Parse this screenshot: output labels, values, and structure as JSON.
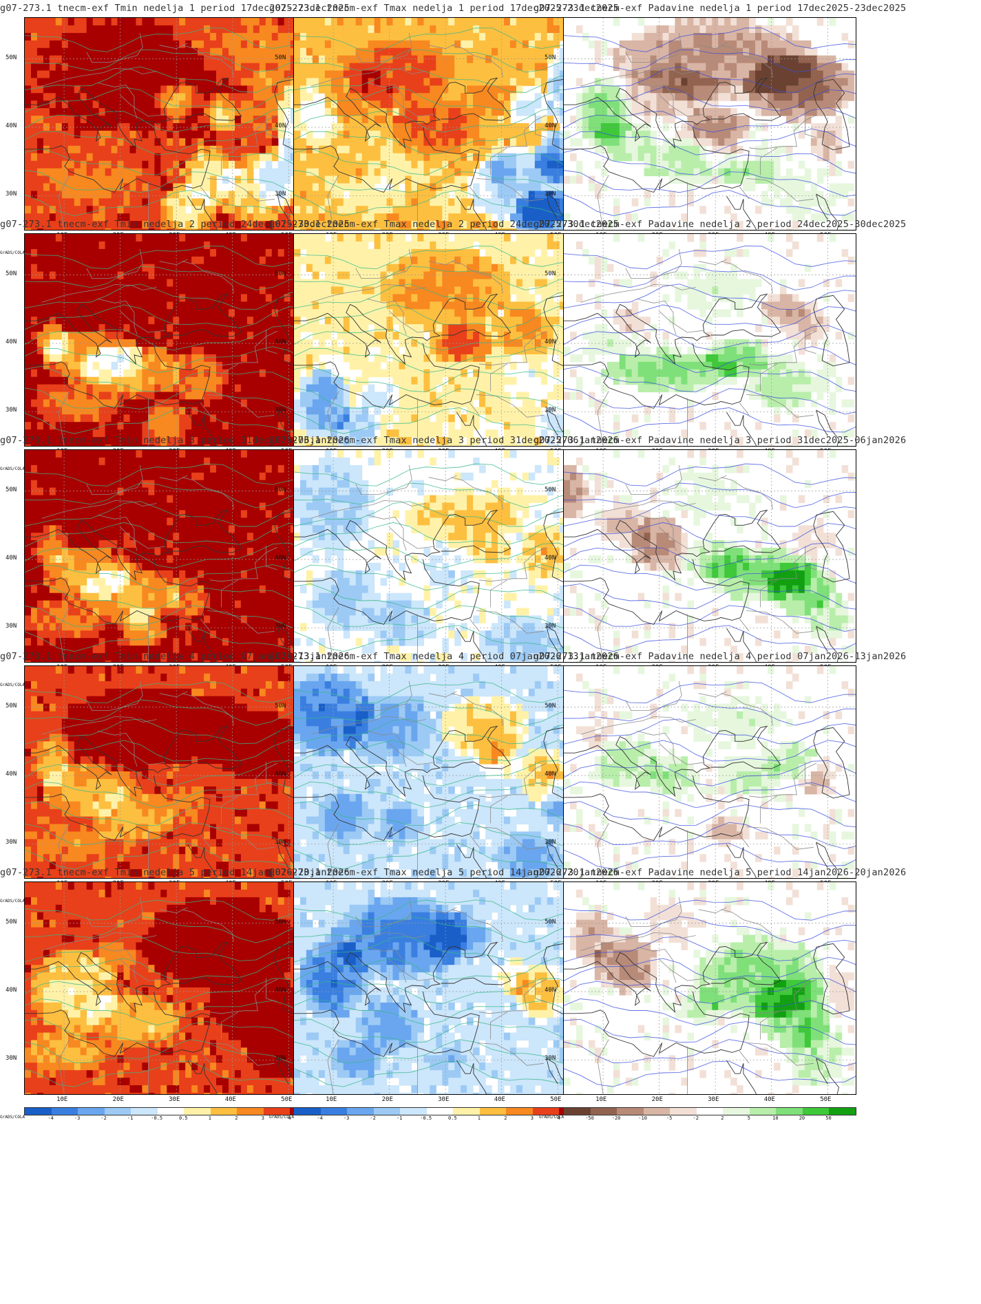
{
  "rows": [
    {
      "week": 1,
      "panels": [
        {
          "title": "g07-273.1 tnecm-exf Tmin nedelja 1 period 17dec2025-23dec2025",
          "kind": "temp",
          "style": "tmin1"
        },
        {
          "title": "g07-273.1 tnecm-exf Tmax nedelja 1 period 17dec2025-23dec2025",
          "kind": "temp",
          "style": "tmax1"
        },
        {
          "title": "g07-273.1 tnecm-exf Padavine nedelja 1 period 17dec2025-23dec2025",
          "kind": "precip",
          "style": "pr1"
        }
      ]
    },
    {
      "week": 2,
      "panels": [
        {
          "title": "g07-273.1 tnecm-exf Tmin nedelja 2 period 24dec2025-30dec2025",
          "kind": "temp",
          "style": "tmin2"
        },
        {
          "title": "g07-273.1 tnecm-exf Tmax nedelja 2 period 24dec2025-30dec2025",
          "kind": "temp",
          "style": "tmax2"
        },
        {
          "title": "g07-273.1 tnecm-exf Padavine nedelja 2 period 24dec2025-30dec2025",
          "kind": "precip",
          "style": "pr2"
        }
      ]
    },
    {
      "week": 3,
      "panels": [
        {
          "title": "g07-273.1 tnecm-exf Tmin nedelja 3 period 31dec2025-06jan2026",
          "kind": "temp",
          "style": "tmin3"
        },
        {
          "title": "g07-273.1 tnecm-exf Tmax nedelja 3 period 31dec2025-06jan2026",
          "kind": "temp",
          "style": "tmax3"
        },
        {
          "title": "g07-273.1 tnecm-exf Padavine nedelja 3 period 31dec2025-06jan2026",
          "kind": "precip",
          "style": "pr3"
        }
      ]
    },
    {
      "week": 4,
      "panels": [
        {
          "title": "g07-273.1 tnecm-exf Tmin nedelja 4 period 07jan2026-13jan2026",
          "kind": "temp",
          "style": "tmin4"
        },
        {
          "title": "g07-273.1 tnecm-exf Tmax nedelja 4 period 07jan2026-13jan2026",
          "kind": "temp",
          "style": "tmax4"
        },
        {
          "title": "g07-273.1 tnecm-exf Padavine nedelja 4 period 07jan2026-13jan2026",
          "kind": "precip",
          "style": "pr4"
        }
      ]
    },
    {
      "week": 5,
      "panels": [
        {
          "title": "g07-273.1 tnecm-exf Tmin nedelja 5 period 14jan2026-20jan2026",
          "kind": "temp",
          "style": "tmin5"
        },
        {
          "title": "g07-273.1 tnecm-exf Tmax nedelja 5 period 14jan2026-20jan2026",
          "kind": "temp",
          "style": "tmax5"
        },
        {
          "title": "g07-273.1 tnecm-exf Padavine nedelja 5 period 14jan2026-20jan2026",
          "kind": "precip",
          "style": "pr5"
        }
      ]
    }
  ],
  "axes": {
    "lat_labels": [
      "50N",
      "40N",
      "30N"
    ],
    "lon_labels": [
      "10E",
      "20E",
      "30E",
      "40E",
      "50E"
    ]
  },
  "colorbars": {
    "credit": "GrADS/COLA",
    "temp": {
      "labels": [
        "-4",
        "-3",
        "-2",
        "-1",
        "-0.5",
        "0.5",
        "1",
        "2",
        "3",
        "4"
      ],
      "colors": [
        "#1a5fc8",
        "#3a7fe0",
        "#6aa6ef",
        "#9ccaf5",
        "#cce6fb",
        "#ffffff",
        "#fff2a8",
        "#fdbf40",
        "#f88820",
        "#e8401a",
        "#a80000"
      ]
    },
    "precip": {
      "labels": [
        "-50",
        "-20",
        "-10",
        "-5",
        "-2",
        "2",
        "5",
        "10",
        "20",
        "50"
      ],
      "colors": [
        "#6b4232",
        "#92634f",
        "#b88a78",
        "#d8b5a5",
        "#f2e0d6",
        "#ffffff",
        "#e6f7de",
        "#b8eeaa",
        "#7fe07a",
        "#3fc83a",
        "#12a012"
      ]
    }
  }
}
